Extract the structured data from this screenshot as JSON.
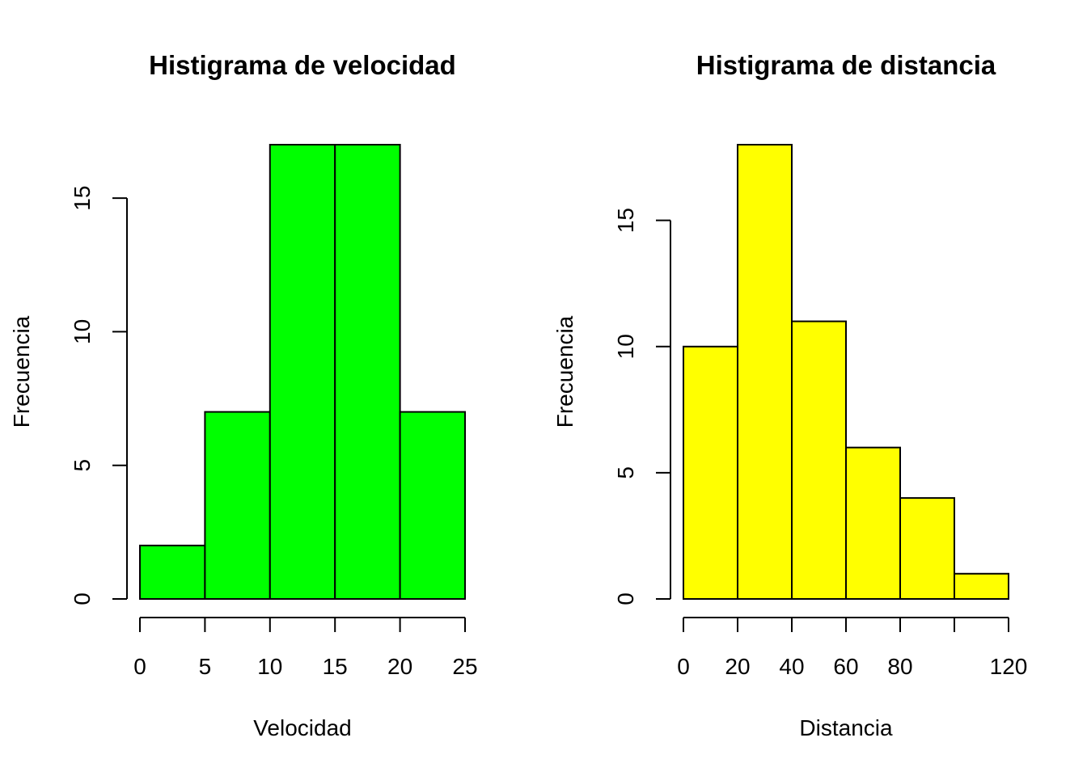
{
  "chart_data": [
    {
      "type": "bar",
      "subtype": "histogram",
      "title": "Histigrama de velocidad",
      "xlabel": "Velocidad",
      "ylabel": "Frecuencia",
      "color": "#00ff00",
      "bins": [
        [
          0,
          5
        ],
        [
          5,
          10
        ],
        [
          10,
          15
        ],
        [
          15,
          20
        ],
        [
          20,
          25
        ]
      ],
      "values": [
        2,
        7,
        17,
        17,
        7
      ],
      "xticks": [
        0,
        5,
        10,
        15,
        20,
        25
      ],
      "xtick_labels": [
        "0",
        "5",
        "10",
        "15",
        "20",
        "25"
      ],
      "yticks": [
        0,
        5,
        10,
        15
      ],
      "ytick_labels": [
        "0",
        "5",
        "10",
        "15"
      ],
      "xlim": [
        0,
        25
      ],
      "ylim": [
        0,
        17
      ],
      "grid": false
    },
    {
      "type": "bar",
      "subtype": "histogram",
      "title": "Histigrama de distancia",
      "xlabel": "Distancia",
      "ylabel": "Frecuencia",
      "color": "#ffff00",
      "bins": [
        [
          0,
          20
        ],
        [
          20,
          40
        ],
        [
          40,
          60
        ],
        [
          60,
          80
        ],
        [
          80,
          100
        ],
        [
          100,
          120
        ]
      ],
      "values": [
        10,
        18,
        11,
        6,
        4,
        1
      ],
      "xticks": [
        0,
        20,
        40,
        60,
        80,
        100,
        120
      ],
      "xtick_labels": [
        "0",
        "20",
        "40",
        "60",
        "80",
        "",
        "120"
      ],
      "yticks": [
        0,
        5,
        10,
        15
      ],
      "ytick_labels": [
        "0",
        "5",
        "10",
        "15"
      ],
      "xlim": [
        0,
        120
      ],
      "ylim": [
        0,
        18
      ],
      "grid": false
    }
  ]
}
